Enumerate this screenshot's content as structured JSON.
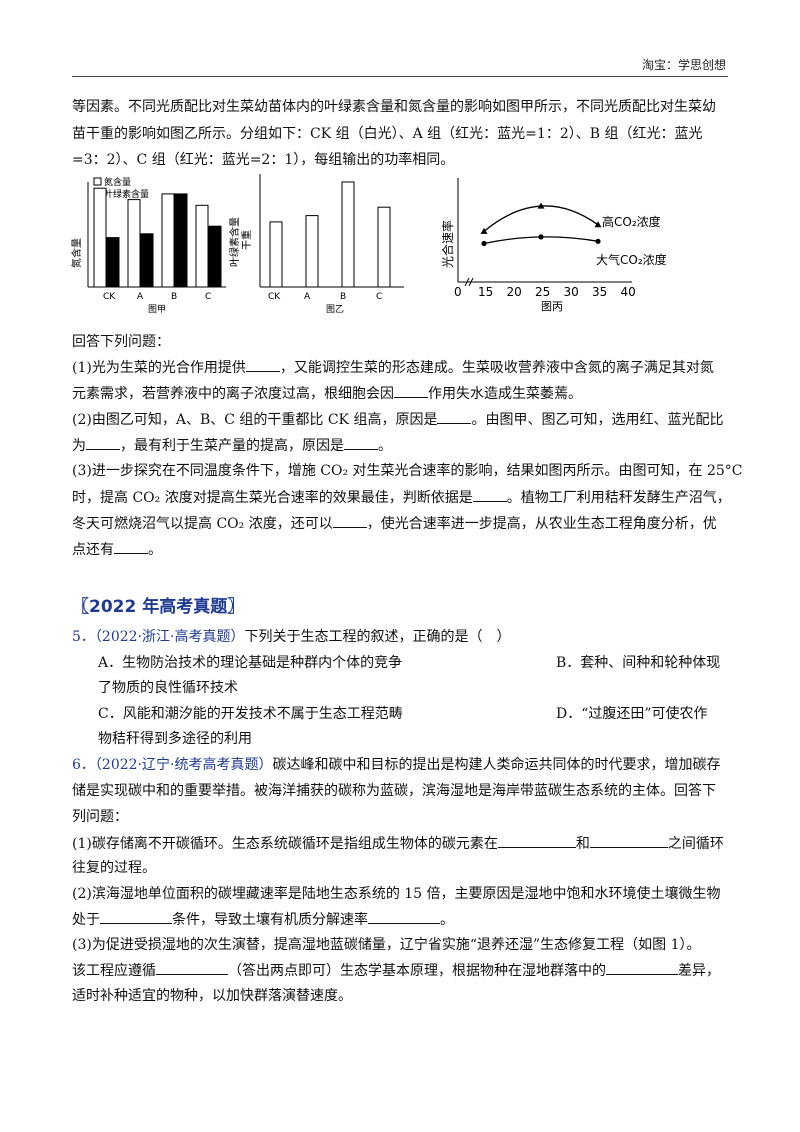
{
  "header": {
    "right_text": "淘宝：学思创想"
  },
  "intro": {
    "line1": "等因素。不同光质配比对生菜幼苗体内的叶绿素含量和氮含量的影响如图甲所示，不同光质配比对生菜幼",
    "line2": "苗干重的影响如图乙所示。分组如下：CK 组（白光）、A 组（红光：蓝光=1：2）、B 组（红光：蓝光",
    "line3": "=3：2）、C 组（红光：蓝光=2：1），每组输出的功率相同。"
  },
  "figures": {
    "jia": {
      "legend": [
        "氮含量",
        "叶绿素含量"
      ],
      "ylabel_left": "氮含量",
      "ylabel_right": "叶绿素含量",
      "caption": "图甲"
    },
    "yi": {
      "ylabel": "干重",
      "caption": "图乙"
    },
    "bing": {
      "ylabel": "光合速率",
      "caption": "图丙",
      "label_high": "高CO₂浓度",
      "label_air": "大气CO₂浓度"
    }
  },
  "chart_data": [
    {
      "type": "bar",
      "title": "图甲",
      "categories": [
        "CK",
        "A",
        "B",
        "C"
      ],
      "series": [
        {
          "name": "氮含量",
          "values": [
            5.2,
            4.6,
            4.9,
            4.3
          ]
        },
        {
          "name": "叶绿素含量",
          "values": [
            2.6,
            2.8,
            4.9,
            3.2
          ]
        }
      ],
      "xlabel": "",
      "ylabel": "氮含量 / 叶绿素含量"
    },
    {
      "type": "bar",
      "title": "图乙",
      "categories": [
        "CK",
        "A",
        "B",
        "C"
      ],
      "values": [
        3.1,
        3.4,
        5.0,
        3.8
      ],
      "xlabel": "",
      "ylabel": "干重"
    },
    {
      "type": "line",
      "title": "图丙",
      "x": [
        15,
        25,
        35
      ],
      "x_ticks": [
        0,
        15,
        20,
        25,
        30,
        35,
        40
      ],
      "series": [
        {
          "name": "高CO₂浓度",
          "values": [
            4.6,
            6.9,
            5.2
          ]
        },
        {
          "name": "大气CO₂浓度",
          "values": [
            3.5,
            4.1,
            3.7
          ]
        }
      ],
      "xlabel": "",
      "ylabel": "光合速率",
      "xlim": [
        0,
        40
      ],
      "ylim": [
        0,
        8
      ]
    }
  ],
  "questions": {
    "prompt": "回答下列问题：",
    "q1_a": "(1)光为生菜的光合作用提供",
    "q1_b": "，又能调控生菜的形态建成。生菜吸收营养液中含氮的离子满足其对氮",
    "q1_c": "元素需求，若营养液中的离子浓度过高，根细胞会因",
    "q1_d": "作用失水造成生菜萎蔫。",
    "q2_a": "(2)由图乙可知，A、B、C 组的干重都比 CK 组高，原因是",
    "q2_b": "。由图甲、图乙可知，选用红、蓝光配比",
    "q2_c": "为",
    "q2_d": "，最有利于生菜产量的提高，原因是",
    "q2_e": "。",
    "q3_a": "(3)进一步探究在不同温度条件下，增施 CO₂ 对生菜光合速率的影响，结果如图丙所示。由图可知，在 25°C",
    "q3_b": "时，提高 CO₂ 浓度对提高生菜光合速率的效果最佳，判断依据是",
    "q3_c": "。植物工厂利用秸秆发酵生产沼气，",
    "q3_d": "冬天可燃烧沼气以提高 CO₂ 浓度，还可以",
    "q3_e": "，使光合速率进一步提高，从农业生态工程角度分析，优",
    "q3_f": "点还有",
    "q3_g": "。"
  },
  "section": {
    "title": "〖2022 年高考真题〗"
  },
  "q5": {
    "num": "5．",
    "src": "（2022·浙江·高考真题）",
    "stem": "下列关于生态工程的叙述，正确的是（　）",
    "optA1": "A．生物防治技术的理论基础是种群内个体的竞争",
    "optA2": "了物质的良性循环技术",
    "optB": "B．套种、间种和轮种体现",
    "optC1": "C．风能和潮汐能的开发技术不属于生态工程范畴",
    "optC2": "物秸秆得到多途径的利用",
    "optD": "D．“过腹还田”可使农作"
  },
  "q6": {
    "num": "6．",
    "src": "（2022·辽宁·统考高考真题）",
    "l1": "碳达峰和碳中和目标的提出是构建人类命运共同体的时代要求，增加碳存",
    "l2": "储是实现碳中和的重要举措。被海洋捕获的碳称为蓝碳，滨海湿地是海岸带蓝碳生态系统的主体。回答下",
    "l3": "列问题：",
    "s1a": "(1)碳存储离不开碳循环。生态系统碳循环是指组成生物体的碳元素在",
    "s1b": "和",
    "s1c": "之间循环",
    "s1d": "往复的过程。",
    "s2a": "(2)滨海湿地单位面积的碳埋藏速率是陆地生态系统的 15 倍，主要原因是湿地中饱和水环境使土壤微生物",
    "s2b": "处于",
    "s2c": "条件，导致土壤有机质分解速率",
    "s2d": "。",
    "s3a": "(3)为促进受损湿地的次生演替，提高湿地蓝碳储量，辽宁省实施“退养还湿”生态修复工程（如图 1）。",
    "s3b": "该工程应遵循",
    "s3c": "（答出两点即可）生态学基本原理，根据物种在湿地群落中的",
    "s3d": "差异，",
    "s3e": "适时补种适宜的物种，以加快群落演替速度。"
  }
}
